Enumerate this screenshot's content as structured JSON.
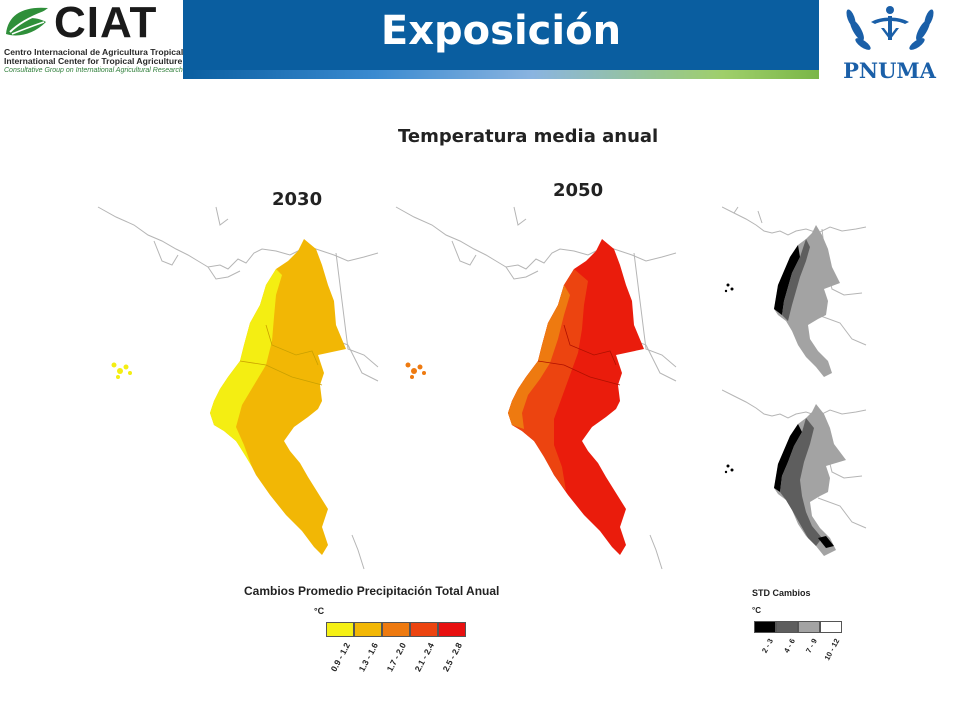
{
  "header": {
    "title": "Exposición",
    "left_logo": {
      "wordmark": "CIAT",
      "line1": "Centro Internacional de Agricultura Tropical",
      "line2": "International Center for Tropical Agriculture",
      "line3": "Consultative Group on International Agricultural Research"
    },
    "right_logo": {
      "wordmark": "PNUMA"
    },
    "colors": {
      "bar": "#0a5ea0",
      "accent_green": "#7ab648"
    }
  },
  "main": {
    "heading": "Temperatura media anual",
    "maps": [
      {
        "label": "2030",
        "fill": "#f2b705",
        "light": "#f4ee12"
      },
      {
        "label": "2050",
        "fill": "#ea1c0c",
        "light": "#f07a12"
      }
    ]
  },
  "legend_change": {
    "title": "Cambios Promedio Precipitación Total Anual",
    "unit": "°C",
    "classes": [
      {
        "label": "0.9 - 1.2",
        "color": "#f5f014"
      },
      {
        "label": "1.3 - 1.6",
        "color": "#f2b705"
      },
      {
        "label": "1.7 - 2.0",
        "color": "#ee7a10"
      },
      {
        "label": "2.1 - 2.4",
        "color": "#ec4410"
      },
      {
        "label": "2.5 - 2.8",
        "color": "#e81010"
      }
    ]
  },
  "legend_std": {
    "title": "STD Cambios",
    "unit": "°C",
    "classes": [
      {
        "label": "2 - 3",
        "color": "#000000"
      },
      {
        "label": "4 - 6",
        "color": "#5e5e5e"
      },
      {
        "label": "7 - 9",
        "color": "#a3a3a3"
      },
      {
        "label": "10 - 12",
        "color": "#ffffff"
      }
    ]
  }
}
